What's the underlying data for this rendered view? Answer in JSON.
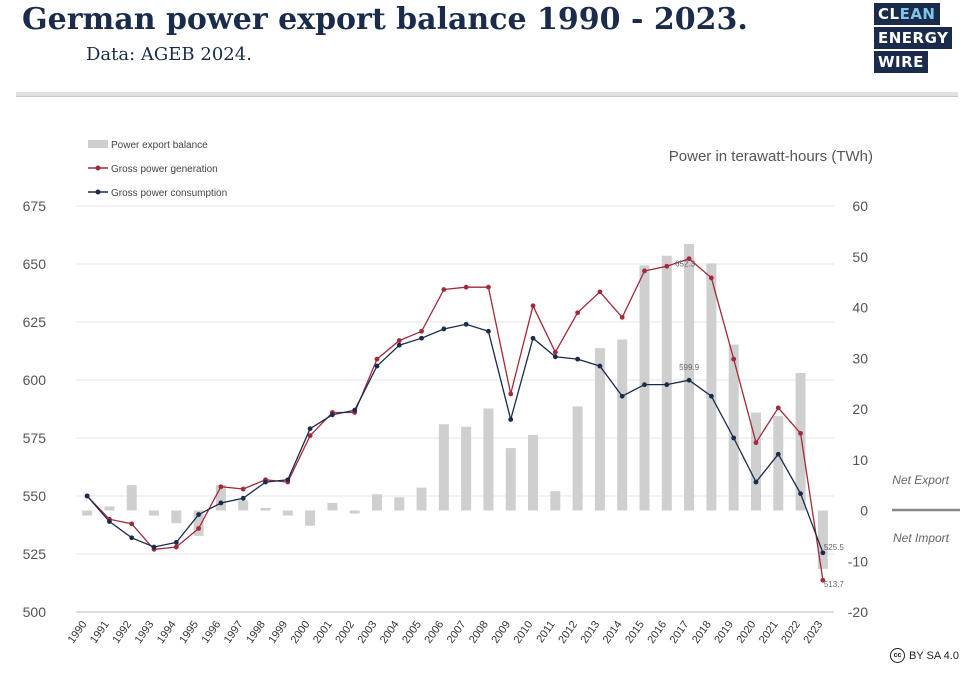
{
  "header": {
    "title": "German power export balance 1990 - 2023.",
    "subtitle": "Data: AGEB 2024."
  },
  "logo": {
    "line1_a": "CL",
    "line1_b": "EAN",
    "line2": "ENERGY",
    "line3": "WIRE"
  },
  "license": {
    "badge": "cc",
    "text": "BY SA 4.0"
  },
  "colors": {
    "bars": "#cfcfcf",
    "generation": "#a32a3a",
    "consumption": "#1a2b4c"
  },
  "chart_data": {
    "type": "bar+line",
    "unit_label": "Power in terawatt-hours (TWh)",
    "categories": [
      "1990",
      "1991",
      "1992",
      "1993",
      "1994",
      "1995",
      "1996",
      "1997",
      "1998",
      "1999",
      "2000",
      "2001",
      "2002",
      "2003",
      "2004",
      "2005",
      "2006",
      "2007",
      "2008",
      "2009",
      "2010",
      "2011",
      "2012",
      "2013",
      "2014",
      "2015",
      "2016",
      "2017",
      "2018",
      "2019",
      "2020",
      "2021",
      "2022",
      "2023"
    ],
    "left_axis": {
      "min": 500,
      "max": 675,
      "ticks": [
        "675",
        "650",
        "625",
        "600",
        "575",
        "550",
        "525",
        "500"
      ]
    },
    "right_axis": {
      "min": -20,
      "max": 60,
      "ticks": [
        "60",
        "50",
        "40",
        "30",
        "20",
        "10",
        "0",
        "-10",
        "-20"
      ]
    },
    "legend": [
      "Power export balance",
      "Gross power generation",
      "Gross power consumption"
    ],
    "series": [
      {
        "name": "Power export balance",
        "type": "bar",
        "axis": "right",
        "values": [
          -1,
          0.8,
          5,
          -1,
          -2.5,
          -5,
          5,
          2,
          0.5,
          -1,
          -3,
          1.5,
          -0.6,
          3.2,
          2.6,
          4.5,
          17,
          16.5,
          20.1,
          12.3,
          14.9,
          3.8,
          20.5,
          32,
          33.7,
          48.3,
          50.2,
          52.5,
          48.7,
          32.7,
          19.3,
          18.6,
          27.1,
          -11.5
        ]
      },
      {
        "name": "Gross power generation",
        "type": "line",
        "axis": "left",
        "values": [
          550,
          540,
          538,
          527,
          528,
          536,
          554,
          553,
          557,
          556,
          576,
          586,
          586,
          609,
          617,
          621,
          639,
          640,
          640,
          594,
          632,
          612,
          629,
          638,
          627,
          647,
          649,
          652.3,
          644,
          609,
          573,
          588,
          577,
          513.7
        ]
      },
      {
        "name": "Gross power consumption",
        "type": "line",
        "axis": "left",
        "values": [
          550,
          539,
          532,
          528,
          530,
          542,
          547,
          549,
          556,
          557,
          579,
          585,
          587,
          606,
          615,
          618,
          622,
          624,
          621,
          583,
          618,
          610,
          609,
          606,
          593,
          598,
          598,
          599.9,
          593,
          575,
          556,
          568,
          551,
          525.5
        ]
      }
    ],
    "annotations": [
      {
        "year": "2017",
        "series": "Gross power generation",
        "text": "652.3"
      },
      {
        "year": "2017",
        "series": "Gross power consumption",
        "text": "599.9"
      },
      {
        "year": "2023",
        "series": "Gross power consumption",
        "text": "525.5"
      },
      {
        "year": "2023",
        "series": "Gross power generation",
        "text": "513.7"
      }
    ],
    "side_labels": {
      "export": "Net Export",
      "import": "Net Import"
    }
  }
}
